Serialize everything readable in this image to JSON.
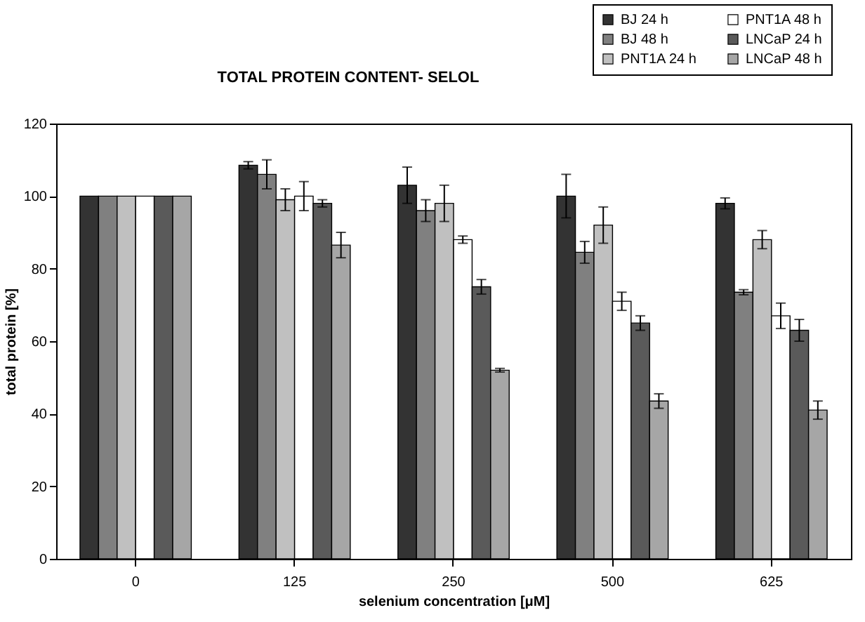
{
  "chart_data": {
    "type": "bar",
    "title": "TOTAL PROTEIN CONTENT- SELOL",
    "xlabel": "selenium concentration [μM]",
    "ylabel": "total protein [%]",
    "categories": [
      "0",
      "125",
      "250",
      "500",
      "625"
    ],
    "series": [
      {
        "name": "BJ 24 h",
        "color": "#333333",
        "values": [
          100,
          108.5,
          103,
          100,
          98
        ],
        "errors": [
          null,
          1,
          5,
          6,
          1.5
        ]
      },
      {
        "name": "BJ 48 h",
        "color": "#808080",
        "values": [
          100,
          106,
          96,
          84.5,
          73.5
        ],
        "errors": [
          null,
          4,
          3,
          3,
          0.7
        ]
      },
      {
        "name": "PNT1A 24 h",
        "color": "#c0c0c0",
        "values": [
          100,
          99,
          98,
          92,
          88
        ],
        "errors": [
          null,
          3,
          5,
          5,
          2.5
        ]
      },
      {
        "name": "PNT1A 48 h",
        "color": "#ffffff",
        "values": [
          100,
          100,
          88,
          71,
          67
        ],
        "errors": [
          null,
          4,
          1,
          2.5,
          3.5
        ]
      },
      {
        "name": "LNCaP 24 h",
        "color": "#5a5a5a",
        "values": [
          100,
          98,
          75,
          65,
          63
        ],
        "errors": [
          null,
          1,
          2,
          2,
          3
        ]
      },
      {
        "name": "LNCaP 48 h",
        "color": "#a6a6a6",
        "values": [
          100,
          86.5,
          52,
          43.5,
          41
        ],
        "errors": [
          null,
          3.5,
          0.5,
          2,
          2.5
        ]
      }
    ],
    "ylim": [
      0,
      120
    ],
    "yticks": [
      0,
      20,
      40,
      60,
      80,
      100,
      120
    ],
    "grid": false,
    "legend": "top right"
  }
}
